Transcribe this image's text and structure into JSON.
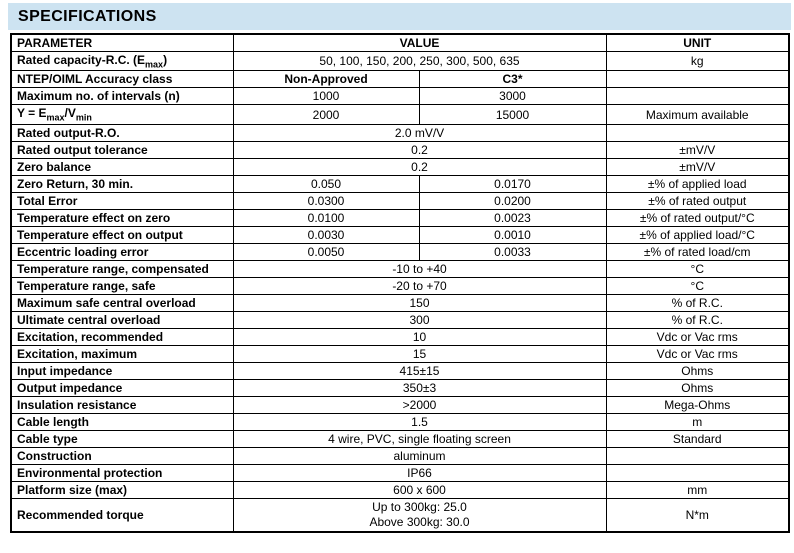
{
  "page_title": "SPECIFICATIONS",
  "colors": {
    "title_band_bg": "#cde3f1",
    "table_border": "#000000",
    "text": "#000000",
    "page_bg": "#ffffff"
  },
  "table": {
    "headers": {
      "parameter": "PARAMETER",
      "value": "VALUE",
      "unit": "UNIT"
    },
    "rows": [
      {
        "parameter_parts": [
          {
            "text": "Rated capacity-R.C. (E"
          },
          {
            "text": "max",
            "sub": true
          },
          {
            "text": ")"
          }
        ],
        "values": [
          {
            "text": "50, 100, 150, 200, 250, 300, 500, 635",
            "colspan": 2
          }
        ],
        "unit": "kg"
      },
      {
        "parameter": "NTEP/OIML Accuracy class",
        "values": [
          {
            "text": "Non-Approved",
            "bold": true
          },
          {
            "text": "C3*",
            "bold": true
          }
        ],
        "unit": ""
      },
      {
        "parameter": "Maximum no. of intervals (n)",
        "values": [
          {
            "text": "1000"
          },
          {
            "text": "3000"
          }
        ],
        "unit": ""
      },
      {
        "parameter_parts": [
          {
            "text": "Y = E"
          },
          {
            "text": "max",
            "sub": true
          },
          {
            "text": "/V"
          },
          {
            "text": "min",
            "sub": true
          }
        ],
        "values": [
          {
            "text": "2000"
          },
          {
            "text": "15000"
          }
        ],
        "unit": "Maximum available"
      },
      {
        "parameter": "Rated output-R.O.",
        "values": [
          {
            "text": "2.0 mV/V",
            "colspan": 2
          }
        ],
        "unit": ""
      },
      {
        "parameter": "Rated output tolerance",
        "values": [
          {
            "text": "0.2",
            "colspan": 2
          }
        ],
        "unit": "±mV/V"
      },
      {
        "parameter": "Zero balance",
        "values": [
          {
            "text": "0.2",
            "colspan": 2
          }
        ],
        "unit": "±mV/V"
      },
      {
        "parameter": "Zero Return, 30 min.",
        "values": [
          {
            "text": "0.050"
          },
          {
            "text": "0.0170"
          }
        ],
        "unit": "±% of applied load"
      },
      {
        "parameter": "Total Error",
        "values": [
          {
            "text": "0.0300"
          },
          {
            "text": "0.0200"
          }
        ],
        "unit": "±% of rated output"
      },
      {
        "parameter": "Temperature effect on zero",
        "values": [
          {
            "text": "0.0100"
          },
          {
            "text": "0.0023"
          }
        ],
        "unit": "±% of rated output/°C"
      },
      {
        "parameter": "Temperature effect on output",
        "values": [
          {
            "text": "0.0030"
          },
          {
            "text": "0.0010"
          }
        ],
        "unit": "±% of applied load/°C"
      },
      {
        "parameter": "Eccentric loading error",
        "values": [
          {
            "text": "0.0050"
          },
          {
            "text": "0.0033"
          }
        ],
        "unit": "±% of rated load/cm"
      },
      {
        "parameter": "Temperature range, compensated",
        "values": [
          {
            "text": "-10 to +40",
            "colspan": 2
          }
        ],
        "unit": "°C"
      },
      {
        "parameter": "Temperature range, safe",
        "values": [
          {
            "text": "-20 to +70",
            "colspan": 2
          }
        ],
        "unit": "°C"
      },
      {
        "parameter": "Maximum safe central overload",
        "values": [
          {
            "text": "150",
            "colspan": 2
          }
        ],
        "unit": "% of R.C."
      },
      {
        "parameter": "Ultimate central overload",
        "values": [
          {
            "text": "300",
            "colspan": 2
          }
        ],
        "unit": "% of R.C."
      },
      {
        "parameter": "Excitation, recommended",
        "values": [
          {
            "text": "10",
            "colspan": 2
          }
        ],
        "unit": "Vdc or Vac rms"
      },
      {
        "parameter": "Excitation, maximum",
        "values": [
          {
            "text": "15",
            "colspan": 2
          }
        ],
        "unit": "Vdc or Vac rms"
      },
      {
        "parameter": "Input impedance",
        "values": [
          {
            "text": "415±15",
            "colspan": 2
          }
        ],
        "unit": "Ohms"
      },
      {
        "parameter": "Output impedance",
        "values": [
          {
            "text": "350±3",
            "colspan": 2
          }
        ],
        "unit": "Ohms"
      },
      {
        "parameter": "Insulation resistance",
        "values": [
          {
            "text": ">2000",
            "colspan": 2
          }
        ],
        "unit": "Mega-Ohms"
      },
      {
        "parameter": "Cable length",
        "values": [
          {
            "text": "1.5",
            "colspan": 2
          }
        ],
        "unit": "m"
      },
      {
        "parameter": "Cable type",
        "values": [
          {
            "text": "4 wire, PVC, single floating screen",
            "colspan": 2
          }
        ],
        "unit": "Standard"
      },
      {
        "parameter": "Construction",
        "values": [
          {
            "text": "aluminum",
            "colspan": 2
          }
        ],
        "unit": ""
      },
      {
        "parameter": "Environmental protection",
        "values": [
          {
            "text": "IP66",
            "colspan": 2
          }
        ],
        "unit": ""
      },
      {
        "parameter": "Platform size (max)",
        "values": [
          {
            "text": "600 x 600",
            "colspan": 2
          }
        ],
        "unit": "mm"
      },
      {
        "parameter": "Recommended torque",
        "values": [
          {
            "lines": [
              "Up to 300kg:  25.0",
              "Above 300kg: 30.0"
            ],
            "colspan": 2
          }
        ],
        "unit": "N*m"
      }
    ]
  }
}
